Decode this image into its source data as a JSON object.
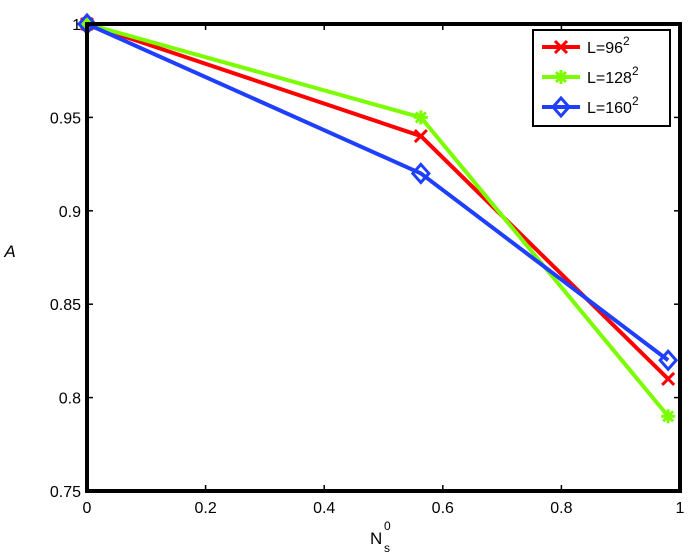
{
  "chart_data": {
    "type": "line",
    "title": "",
    "xlabel": "N",
    "xlabel_sup": "0",
    "xlabel_sub": "s",
    "ylabel": "A",
    "xlim": [
      0,
      1
    ],
    "ylim": [
      0.75,
      1
    ],
    "xticks": [
      "0",
      "0.2",
      "0.4",
      "0.6",
      "0.8",
      "1"
    ],
    "yticks": [
      "0.75",
      "0.8",
      "0.85",
      "0.9",
      "0.95",
      "1"
    ],
    "xtick_values": [
      0,
      0.2,
      0.4,
      0.6,
      0.8,
      1
    ],
    "ytick_values": [
      0.75,
      0.8,
      0.85,
      0.9,
      0.95,
      1
    ],
    "grid": false,
    "legend_position": "top-right",
    "x": [
      0,
      0.563,
      0.98
    ],
    "series": [
      {
        "name": "L=96",
        "name_sup": "2",
        "values": [
          1.0,
          0.94,
          0.81
        ],
        "color": "#ff0000",
        "marker": "x"
      },
      {
        "name": "L=128",
        "name_sup": "2",
        "values": [
          1.0,
          0.95,
          0.79
        ],
        "color": "#7cfc00",
        "marker": "star"
      },
      {
        "name": "L=160",
        "name_sup": "2",
        "values": [
          1.0,
          0.92,
          0.82
        ],
        "color": "#1f3fff",
        "marker": "diamond"
      }
    ]
  }
}
